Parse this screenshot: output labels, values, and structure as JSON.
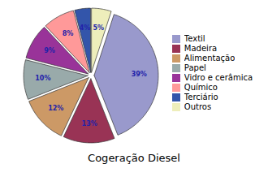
{
  "chart_data": {
    "type": "pie",
    "title": "Cogeração Diesel",
    "categories": [
      "Textil",
      "Madeira",
      "Alimentação",
      "Papel",
      "Vidro e cerâmica",
      "Químico",
      "Terciário",
      "Outros"
    ],
    "values": [
      39,
      13,
      12,
      10,
      9,
      8,
      4,
      5
    ],
    "value_labels": [
      "39%",
      "13%",
      "12%",
      "10%",
      "9%",
      "8%",
      "4%",
      "5%"
    ],
    "colors": [
      "#9999cc",
      "#993355",
      "#cc9966",
      "#99aaaa",
      "#993399",
      "#ff9999",
      "#3355aa",
      "#eeeebb"
    ],
    "data_labels": true,
    "legend": "right"
  }
}
